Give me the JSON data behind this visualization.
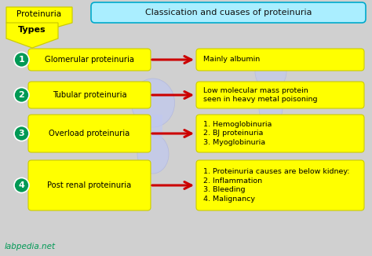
{
  "bg_color": "#d0d0d0",
  "title_box_text": "Classication and cuases of proteinuria",
  "title_box_bg": "#aaeeff",
  "title_box_border": "#00aacc",
  "top_label": "Proteinuria",
  "yellow": "#ffff00",
  "yellow_edge": "#cccc00",
  "green_circle": "#009955",
  "arrow_color": "#cc0000",
  "rows": [
    {
      "num": "1",
      "left": "Glomerular proteinuria",
      "right": "Mainly albumin"
    },
    {
      "num": "2",
      "left": "Tubular proteinuria",
      "right": "Low molecular mass protein\nseen in heavy metal poisoning"
    },
    {
      "num": "3",
      "left": "Overload proteinuria",
      "right": "1. Hemoglobinuria\n2. BJ proteinuria\n3. Myoglobinuria"
    },
    {
      "num": "4",
      "left": "Post renal proteinuria",
      "right": "1. Proteinuria causes are below kidney:\n2. Inflammation\n3. Bleeding\n4. Malignancy"
    }
  ],
  "watermark": "labpedia.net",
  "kidney_color": "#c0c8f0",
  "kidney_edge": "#a8b0e0"
}
